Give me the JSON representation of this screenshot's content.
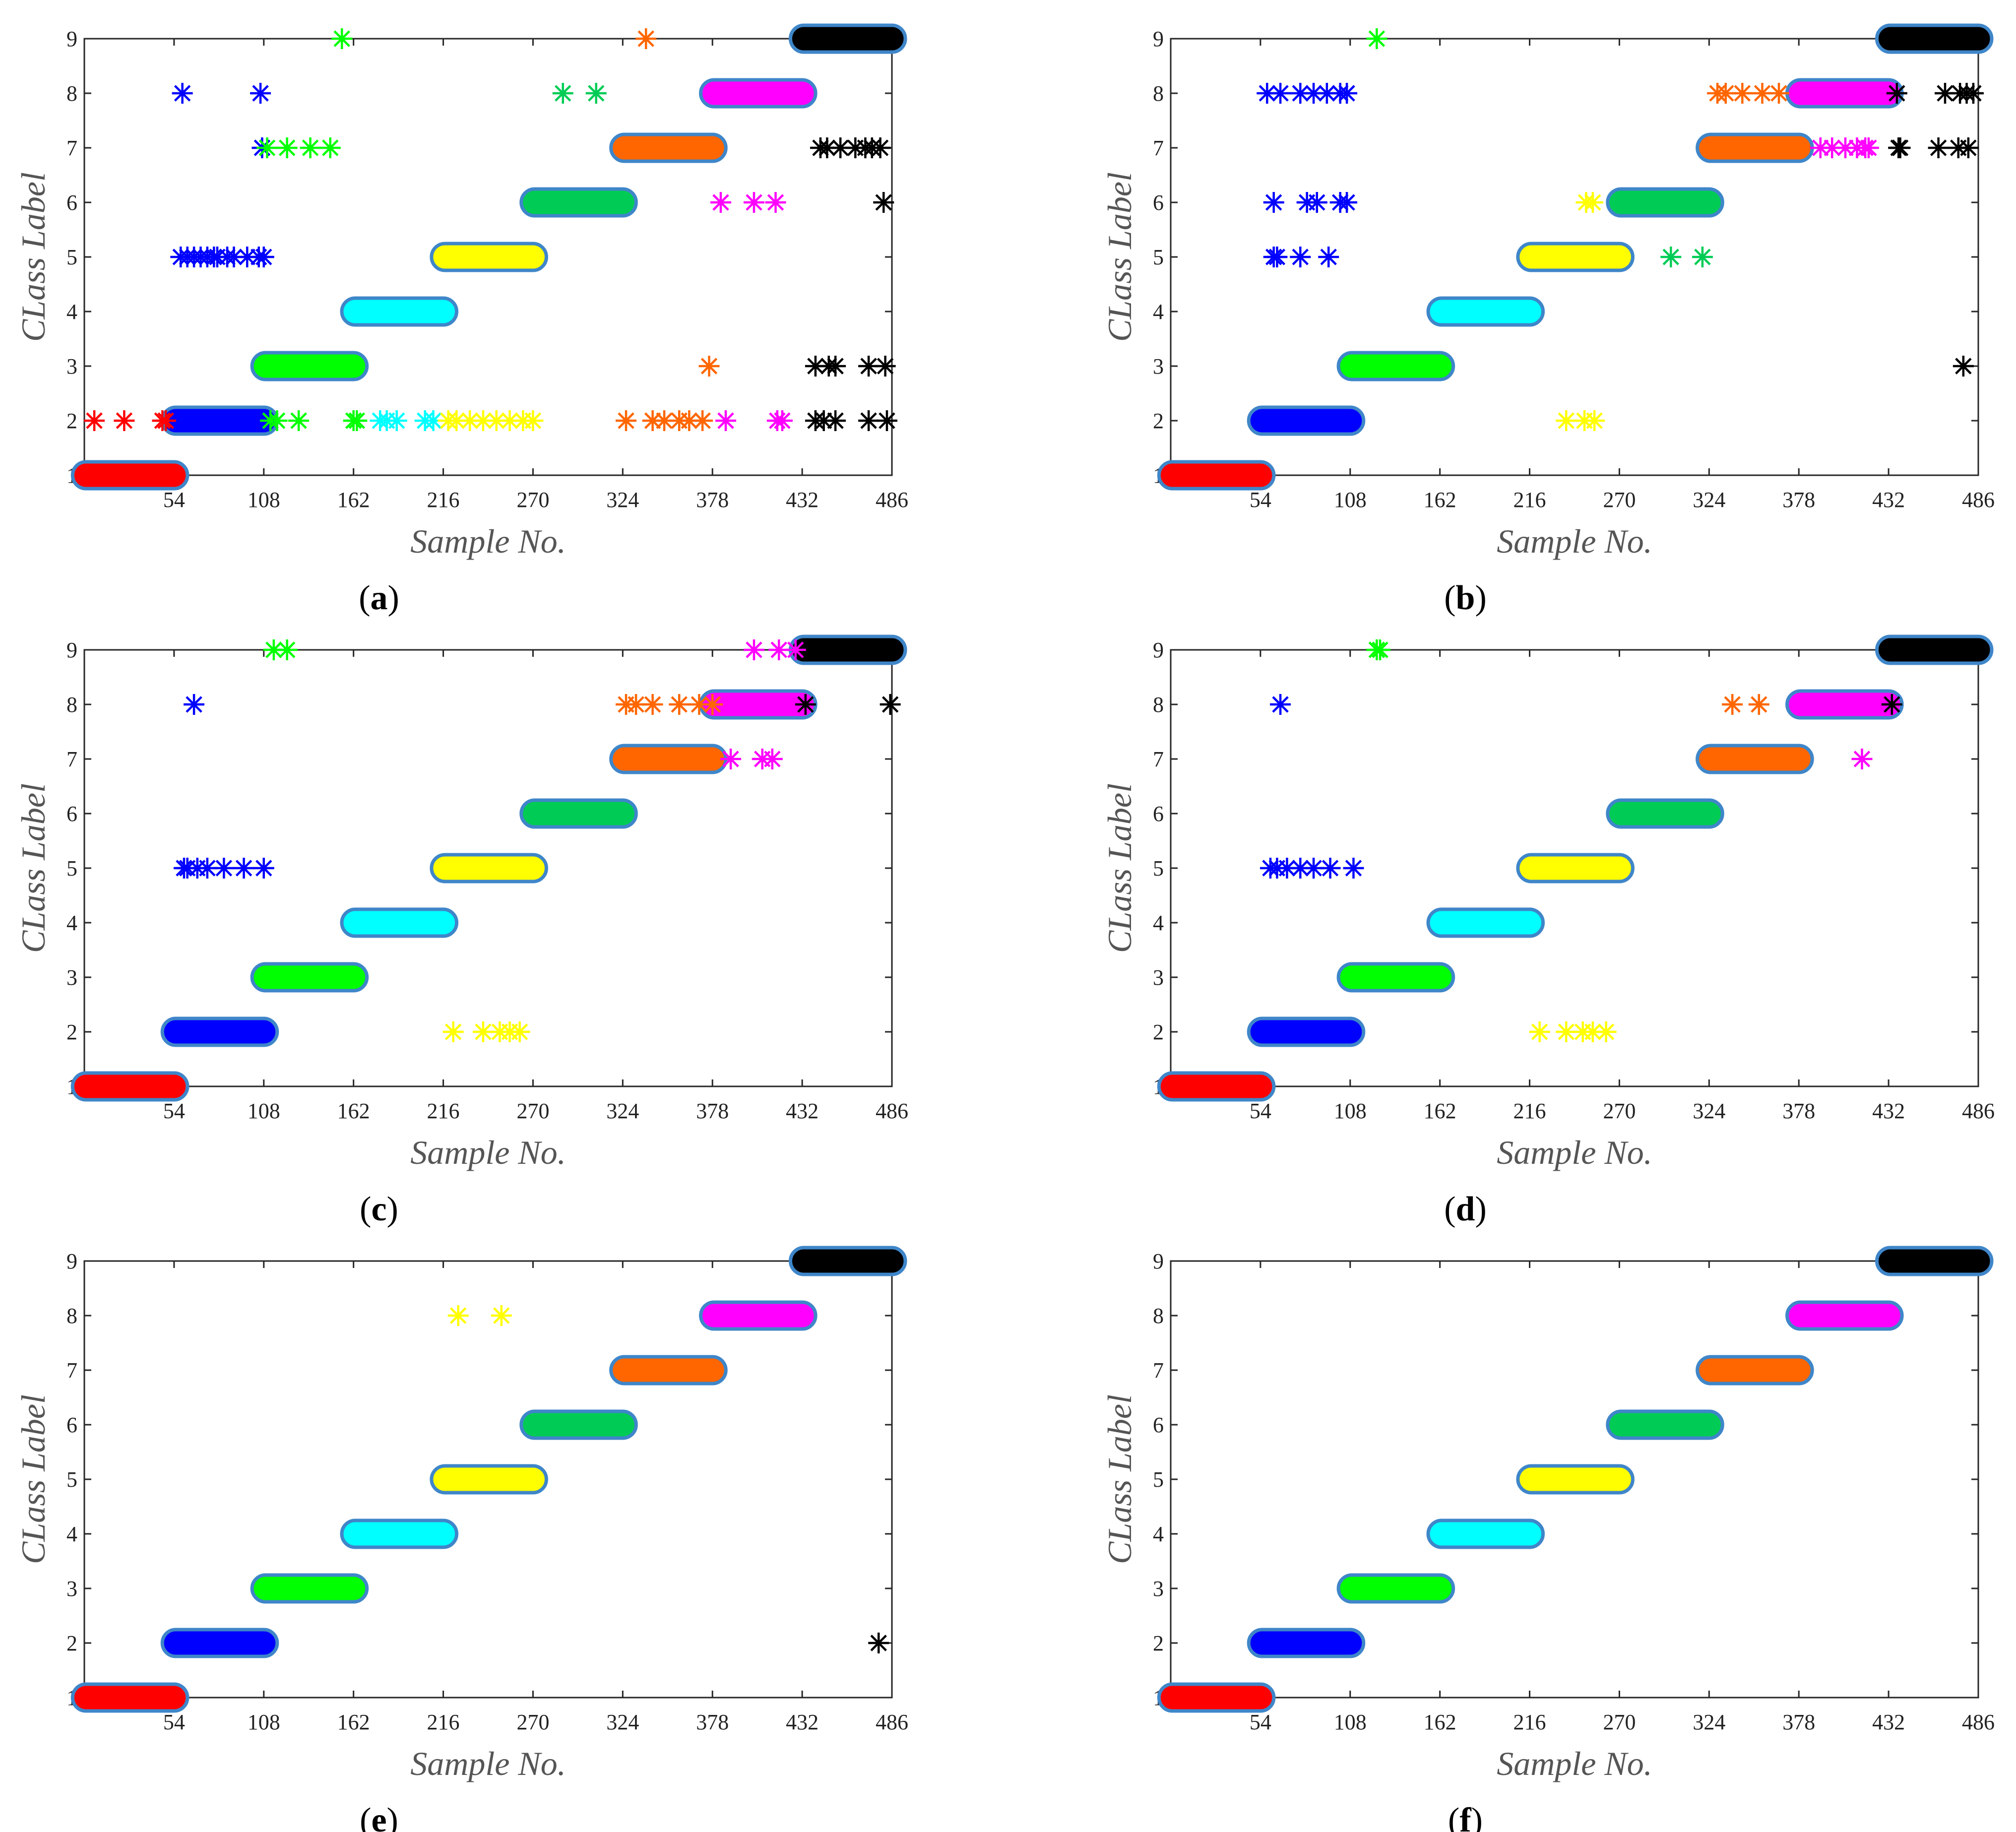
{
  "figure": {
    "marker_outline_color": "#3f86c9",
    "class_colors": {
      "1": "#ff0000",
      "2": "#0000ff",
      "3": "#00ff00",
      "4": "#00ffff",
      "5": "#ffff00",
      "6": "#00cc55",
      "7": "#ff6600",
      "8": "#ff00ff",
      "9": "#000000"
    }
  },
  "chart_data": [
    {
      "caption": "a",
      "caption_open": "(",
      "caption_close": ")",
      "type": "scatter",
      "xlabel": "Sample No.",
      "ylabel": "CLass Label",
      "xlim": [
        0,
        486
      ],
      "ylim": [
        1,
        9
      ],
      "xticks": [
        "54",
        "108",
        "162",
        "216",
        "270",
        "324",
        "378",
        "432",
        "486"
      ],
      "yticks": [
        "1",
        "2",
        "3",
        "4",
        "5",
        "6",
        "7",
        "8",
        "9"
      ],
      "true_label_segments": [
        {
          "class": 1,
          "x_start": 1,
          "x_end": 54
        },
        {
          "class": 2,
          "x_start": 55,
          "x_end": 108
        },
        {
          "class": 3,
          "x_start": 109,
          "x_end": 162
        },
        {
          "class": 4,
          "x_start": 163,
          "x_end": 216
        },
        {
          "class": 5,
          "x_start": 217,
          "x_end": 270
        },
        {
          "class": 6,
          "x_start": 271,
          "x_end": 324
        },
        {
          "class": 7,
          "x_start": 325,
          "x_end": 378
        },
        {
          "class": 8,
          "x_start": 379,
          "x_end": 432
        },
        {
          "class": 9,
          "x_start": 433,
          "x_end": 486
        }
      ],
      "predictions": [
        {
          "class": 1,
          "x": [
            6,
            24,
            47,
            49
          ],
          "y": [
            2,
            2,
            2,
            2
          ]
        },
        {
          "class": 2,
          "x": [
            58,
            62,
            66,
            70,
            74,
            78,
            80,
            86,
            90,
            98,
            105,
            108
          ],
          "y": [
            5,
            5,
            5,
            5,
            5,
            5,
            5,
            5,
            5,
            5,
            5,
            5
          ]
        },
        {
          "class": 2,
          "x": [
            59,
            106
          ],
          "y": [
            8,
            8
          ]
        },
        {
          "class": 2,
          "x": [
            107
          ],
          "y": [
            7
          ]
        },
        {
          "class": 3,
          "x": [
            112,
            116,
            129
          ],
          "y": [
            2,
            2,
            2
          ]
        },
        {
          "class": 3,
          "x": [
            110,
            122,
            136,
            148
          ],
          "y": [
            7,
            7,
            7,
            7
          ]
        },
        {
          "class": 3,
          "x": [
            155,
            162,
            164
          ],
          "y": [
            9,
            2,
            2
          ]
        },
        {
          "class": 6,
          "x": [
            288,
            308
          ],
          "y": [
            8,
            8
          ]
        },
        {
          "class": 4,
          "x": [
            178,
            182,
            188,
            205,
            210
          ],
          "y": [
            2,
            2,
            2,
            2,
            2
          ]
        },
        {
          "class": 5,
          "x": [
            219,
            224,
            232,
            240,
            248,
            256,
            264,
            270
          ],
          "y": [
            2,
            2,
            2,
            2,
            2,
            2,
            2,
            2
          ]
        },
        {
          "class": 7,
          "x": [
            326,
            342,
            349,
            358,
            364,
            372
          ],
          "y": [
            2,
            2,
            2,
            2,
            2,
            2
          ]
        },
        {
          "class": 7,
          "x": [
            338,
            376
          ],
          "y": [
            9,
            3
          ]
        },
        {
          "class": 8,
          "x": [
            383,
            403,
            416,
            420
          ],
          "y": [
            6,
            6,
            6,
            2
          ]
        },
        {
          "class": 8,
          "x": [
            386,
            417
          ],
          "y": [
            2,
            2
          ]
        },
        {
          "class": 9,
          "x": [
            440,
            445,
            452,
            472,
            483
          ],
          "y": [
            2,
            2,
            2,
            2,
            2
          ]
        },
        {
          "class": 9,
          "x": [
            440,
            448,
            452,
            472,
            482
          ],
          "y": [
            3,
            3,
            3,
            3,
            3
          ]
        },
        {
          "class": 9,
          "x": [
            443,
            447,
            455,
            464,
            470,
            474,
            479
          ],
          "y": [
            7,
            7,
            7,
            7,
            7,
            7,
            7
          ]
        },
        {
          "class": 9,
          "x": [
            481
          ],
          "y": [
            6
          ]
        }
      ]
    },
    {
      "caption": "b",
      "caption_open": "(",
      "caption_close": ")",
      "type": "scatter",
      "xlabel": "Sample No.",
      "ylabel": "CLass Label",
      "xlim": [
        0,
        486
      ],
      "ylim": [
        1,
        9
      ],
      "xticks": [
        "54",
        "108",
        "162",
        "216",
        "270",
        "324",
        "378",
        "432",
        "486"
      ],
      "yticks": [
        "1",
        "2",
        "3",
        "4",
        "5",
        "6",
        "7",
        "8",
        "9"
      ],
      "true_label_segments": [
        {
          "class": 1,
          "x_start": 1,
          "x_end": 54
        },
        {
          "class": 2,
          "x_start": 55,
          "x_end": 108
        },
        {
          "class": 3,
          "x_start": 109,
          "x_end": 162
        },
        {
          "class": 4,
          "x_start": 163,
          "x_end": 216
        },
        {
          "class": 5,
          "x_start": 217,
          "x_end": 270
        },
        {
          "class": 6,
          "x_start": 271,
          "x_end": 324
        },
        {
          "class": 7,
          "x_start": 325,
          "x_end": 378
        },
        {
          "class": 8,
          "x_start": 379,
          "x_end": 432
        },
        {
          "class": 9,
          "x_start": 433,
          "x_end": 486
        }
      ],
      "predictions": [
        {
          "class": 2,
          "x": [
            58,
            66,
            78,
            86,
            94,
            102,
            106
          ],
          "y": [
            8,
            8,
            8,
            8,
            8,
            8,
            8
          ]
        },
        {
          "class": 2,
          "x": [
            62,
            82,
            88,
            102,
            106
          ],
          "y": [
            6,
            6,
            6,
            6,
            6
          ]
        },
        {
          "class": 2,
          "x": [
            62,
            64,
            78,
            95
          ],
          "y": [
            5,
            5,
            5,
            5
          ]
        },
        {
          "class": 3,
          "x": [
            124
          ],
          "y": [
            9
          ]
        },
        {
          "class": 5,
          "x": [
            250,
            254
          ],
          "y": [
            6,
            6
          ]
        },
        {
          "class": 5,
          "x": [
            238,
            249,
            255
          ],
          "y": [
            2,
            2,
            2
          ]
        },
        {
          "class": 6,
          "x": [
            301,
            320
          ],
          "y": [
            5,
            5
          ]
        },
        {
          "class": 7,
          "x": [
            329,
            334,
            344,
            356,
            366
          ],
          "y": [
            8,
            8,
            8,
            8,
            8
          ]
        },
        {
          "class": 8,
          "x": [
            391,
            398,
            406,
            413,
            420,
            418
          ],
          "y": [
            7,
            7,
            7,
            7,
            7,
            7
          ]
        },
        {
          "class": 9,
          "x": [
            437,
            439,
            466,
            475,
            479,
            483
          ],
          "y": [
            8,
            7,
            8,
            8,
            8,
            8
          ]
        },
        {
          "class": 9,
          "x": [
            438,
            462,
            474,
            480
          ],
          "y": [
            7,
            7,
            7,
            7
          ]
        },
        {
          "class": 9,
          "x": [
            477
          ],
          "y": [
            3
          ]
        }
      ]
    },
    {
      "caption": "c",
      "caption_open": "(",
      "caption_close": ")",
      "type": "scatter",
      "xlabel": "Sample No.",
      "ylabel": "CLass Label",
      "xlim": [
        0,
        486
      ],
      "ylim": [
        1,
        9
      ],
      "xticks": [
        "54",
        "108",
        "162",
        "216",
        "270",
        "324",
        "378",
        "432",
        "486"
      ],
      "yticks": [
        "1",
        "2",
        "3",
        "4",
        "5",
        "6",
        "7",
        "8",
        "9"
      ],
      "true_label_segments": [
        {
          "class": 1,
          "x_start": 1,
          "x_end": 54
        },
        {
          "class": 2,
          "x_start": 55,
          "x_end": 108
        },
        {
          "class": 3,
          "x_start": 109,
          "x_end": 162
        },
        {
          "class": 4,
          "x_start": 163,
          "x_end": 216
        },
        {
          "class": 5,
          "x_start": 217,
          "x_end": 270
        },
        {
          "class": 6,
          "x_start": 271,
          "x_end": 324
        },
        {
          "class": 7,
          "x_start": 325,
          "x_end": 378
        },
        {
          "class": 8,
          "x_start": 379,
          "x_end": 432
        },
        {
          "class": 9,
          "x_start": 433,
          "x_end": 486
        }
      ],
      "predictions": [
        {
          "class": 2,
          "x": [
            66
          ],
          "y": [
            8
          ]
        },
        {
          "class": 2,
          "x": [
            60,
            62,
            68,
            74,
            84,
            96,
            108
          ],
          "y": [
            5,
            5,
            5,
            5,
            5,
            5,
            5
          ]
        },
        {
          "class": 3,
          "x": [
            114,
            122
          ],
          "y": [
            9,
            9
          ]
        },
        {
          "class": 5,
          "x": [
            222,
            240,
            250,
            256,
            262
          ],
          "y": [
            2,
            2,
            2,
            2,
            2
          ]
        },
        {
          "class": 7,
          "x": [
            326,
            332,
            342,
            358,
            370,
            378
          ],
          "y": [
            8,
            8,
            8,
            8,
            8,
            8
          ]
        },
        {
          "class": 8,
          "x": [
            403,
            418,
            428
          ],
          "y": [
            9,
            9,
            9
          ]
        },
        {
          "class": 8,
          "x": [
            389,
            408,
            414
          ],
          "y": [
            7,
            7,
            7
          ]
        },
        {
          "class": 9,
          "x": [
            434,
            485
          ],
          "y": [
            8,
            8
          ]
        }
      ]
    },
    {
      "caption": "d",
      "caption_open": "(",
      "caption_close": ")",
      "type": "scatter",
      "xlabel": "Sample No.",
      "ylabel": "CLass Label",
      "xlim": [
        0,
        486
      ],
      "ylim": [
        1,
        9
      ],
      "xticks": [
        "54",
        "108",
        "162",
        "216",
        "270",
        "324",
        "378",
        "432",
        "486"
      ],
      "yticks": [
        "1",
        "2",
        "3",
        "4",
        "5",
        "6",
        "7",
        "8",
        "9"
      ],
      "true_label_segments": [
        {
          "class": 1,
          "x_start": 1,
          "x_end": 54
        },
        {
          "class": 2,
          "x_start": 55,
          "x_end": 108
        },
        {
          "class": 3,
          "x_start": 109,
          "x_end": 162
        },
        {
          "class": 4,
          "x_start": 163,
          "x_end": 216
        },
        {
          "class": 5,
          "x_start": 217,
          "x_end": 270
        },
        {
          "class": 6,
          "x_start": 271,
          "x_end": 324
        },
        {
          "class": 7,
          "x_start": 325,
          "x_end": 378
        },
        {
          "class": 8,
          "x_start": 379,
          "x_end": 432
        },
        {
          "class": 9,
          "x_start": 433,
          "x_end": 486
        }
      ],
      "predictions": [
        {
          "class": 2,
          "x": [
            66
          ],
          "y": [
            8
          ]
        },
        {
          "class": 2,
          "x": [
            60,
            64,
            70,
            78,
            86,
            96,
            110
          ],
          "y": [
            5,
            5,
            5,
            5,
            5,
            5,
            5
          ]
        },
        {
          "class": 3,
          "x": [
            124,
            126
          ],
          "y": [
            9,
            9
          ]
        },
        {
          "class": 5,
          "x": [
            222,
            238,
            248,
            254,
            262
          ],
          "y": [
            2,
            2,
            2,
            2,
            2
          ]
        },
        {
          "class": 7,
          "x": [
            338,
            354
          ],
          "y": [
            8,
            8
          ]
        },
        {
          "class": 8,
          "x": [
            416
          ],
          "y": [
            7
          ]
        },
        {
          "class": 9,
          "x": [
            434
          ],
          "y": [
            8
          ]
        }
      ]
    },
    {
      "caption": "e",
      "caption_open": "(",
      "caption_close": ")",
      "type": "scatter",
      "xlabel": "Sample No.",
      "ylabel": "CLass Label",
      "xlim": [
        0,
        486
      ],
      "ylim": [
        1,
        9
      ],
      "xticks": [
        "54",
        "108",
        "162",
        "216",
        "270",
        "324",
        "378",
        "432",
        "486"
      ],
      "yticks": [
        "1",
        "2",
        "3",
        "4",
        "5",
        "6",
        "7",
        "8",
        "9"
      ],
      "true_label_segments": [
        {
          "class": 1,
          "x_start": 1,
          "x_end": 54
        },
        {
          "class": 2,
          "x_start": 55,
          "x_end": 108
        },
        {
          "class": 3,
          "x_start": 109,
          "x_end": 162
        },
        {
          "class": 4,
          "x_start": 163,
          "x_end": 216
        },
        {
          "class": 5,
          "x_start": 217,
          "x_end": 270
        },
        {
          "class": 6,
          "x_start": 271,
          "x_end": 324
        },
        {
          "class": 7,
          "x_start": 325,
          "x_end": 378
        },
        {
          "class": 8,
          "x_start": 379,
          "x_end": 432
        },
        {
          "class": 9,
          "x_start": 433,
          "x_end": 486
        }
      ],
      "predictions": [
        {
          "class": 5,
          "x": [
            225,
            251
          ],
          "y": [
            8,
            8
          ]
        },
        {
          "class": 9,
          "x": [
            478
          ],
          "y": [
            2
          ]
        }
      ]
    },
    {
      "caption": "f",
      "caption_open": "(",
      "caption_close": ")",
      "type": "scatter",
      "xlabel": "Sample No.",
      "ylabel": "CLass Label",
      "xlim": [
        0,
        486
      ],
      "ylim": [
        1,
        9
      ],
      "xticks": [
        "54",
        "108",
        "162",
        "216",
        "270",
        "324",
        "378",
        "432",
        "486"
      ],
      "yticks": [
        "1",
        "2",
        "3",
        "4",
        "5",
        "6",
        "7",
        "8",
        "9"
      ],
      "true_label_segments": [
        {
          "class": 1,
          "x_start": 1,
          "x_end": 54
        },
        {
          "class": 2,
          "x_start": 55,
          "x_end": 108
        },
        {
          "class": 3,
          "x_start": 109,
          "x_end": 162
        },
        {
          "class": 4,
          "x_start": 163,
          "x_end": 216
        },
        {
          "class": 5,
          "x_start": 217,
          "x_end": 270
        },
        {
          "class": 6,
          "x_start": 271,
          "x_end": 324
        },
        {
          "class": 7,
          "x_start": 325,
          "x_end": 378
        },
        {
          "class": 8,
          "x_start": 379,
          "x_end": 432
        },
        {
          "class": 9,
          "x_start": 433,
          "x_end": 486
        }
      ],
      "predictions": []
    }
  ]
}
